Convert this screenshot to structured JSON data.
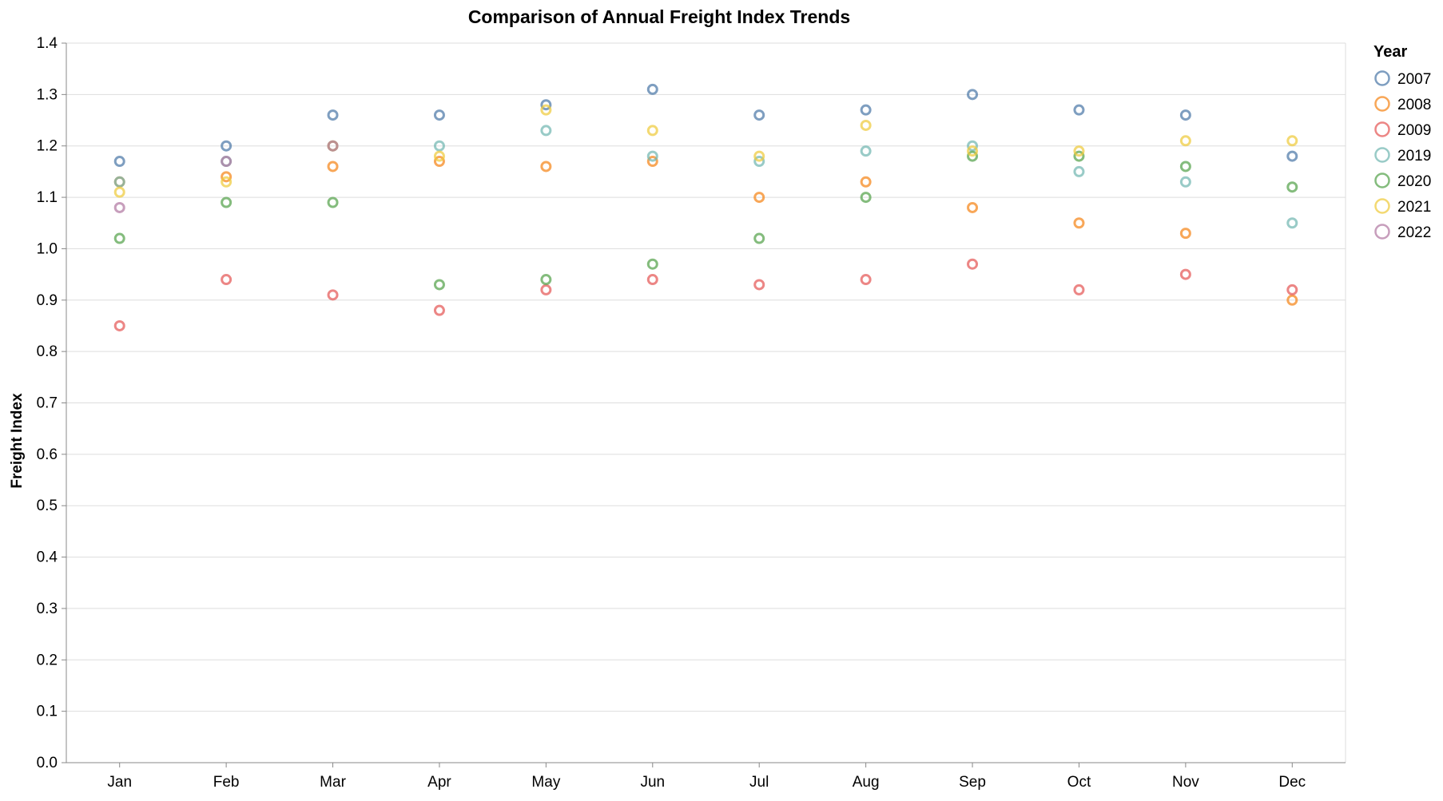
{
  "chart_data": {
    "type": "scatter",
    "title": "Comparison of Annual Freight Index Trends",
    "xlabel": "",
    "ylabel": "Freight Index",
    "categories": [
      "Jan",
      "Feb",
      "Mar",
      "Apr",
      "May",
      "Jun",
      "Jul",
      "Aug",
      "Sep",
      "Oct",
      "Nov",
      "Dec"
    ],
    "ylim": [
      0,
      1.4
    ],
    "yticks": [
      "0.0",
      "0.1",
      "0.2",
      "0.3",
      "0.4",
      "0.5",
      "0.6",
      "0.7",
      "0.8",
      "0.9",
      "1.0",
      "1.1",
      "1.2",
      "1.3",
      "1.4"
    ],
    "grid": true,
    "legend": {
      "title": "Year",
      "position": "right"
    },
    "series": [
      {
        "name": "2007",
        "color": "#4c78a8",
        "values": [
          1.17,
          1.2,
          1.26,
          1.26,
          1.28,
          1.31,
          1.26,
          1.27,
          1.3,
          1.27,
          1.26,
          1.18
        ]
      },
      {
        "name": "2008",
        "color": "#f58518",
        "values": [
          1.13,
          1.14,
          1.16,
          1.17,
          1.16,
          1.17,
          1.1,
          1.13,
          1.08,
          1.05,
          1.03,
          0.9
        ]
      },
      {
        "name": "2009",
        "color": "#e45756",
        "values": [
          0.85,
          0.94,
          0.91,
          0.88,
          0.92,
          0.94,
          0.93,
          0.94,
          0.97,
          0.92,
          0.95,
          0.92
        ]
      },
      {
        "name": "2019",
        "color": "#72b7b2",
        "values": [
          1.13,
          1.17,
          1.2,
          1.2,
          1.23,
          1.18,
          1.17,
          1.19,
          1.2,
          1.15,
          1.13,
          1.05
        ]
      },
      {
        "name": "2020",
        "color": "#54a24b",
        "values": [
          1.02,
          1.09,
          1.09,
          0.93,
          0.94,
          0.97,
          1.02,
          1.1,
          1.18,
          1.18,
          1.16,
          1.12
        ]
      },
      {
        "name": "2021",
        "color": "#eeca3b",
        "values": [
          1.11,
          1.13,
          1.2,
          1.18,
          1.27,
          1.23,
          1.18,
          1.24,
          1.19,
          1.19,
          1.21,
          1.21
        ]
      },
      {
        "name": "2022",
        "color": "#b279a2",
        "values": [
          1.08,
          1.17,
          1.2,
          null,
          null,
          null,
          null,
          null,
          null,
          null,
          null,
          null
        ]
      }
    ]
  }
}
